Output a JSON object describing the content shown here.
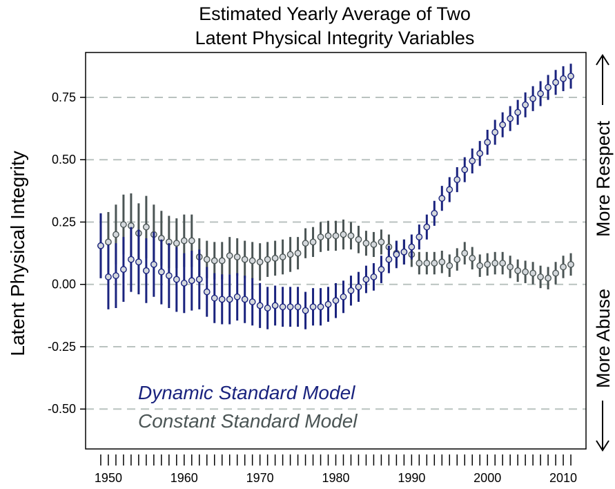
{
  "chart_data": {
    "type": "scatter",
    "title": [
      "Estimated Yearly Average of Two",
      "Latent Physical Integrity Variables"
    ],
    "ylabel": "Latent Physical Integrity",
    "right_labels": {
      "upper": "More Respect",
      "lower": "More Abuse"
    },
    "xlim": [
      1947,
      2013
    ],
    "ylim": [
      -0.66,
      0.93
    ],
    "x_ticks": [
      1950,
      1960,
      1970,
      1980,
      1990,
      2000,
      2010
    ],
    "y_ticks": [
      -0.5,
      -0.25,
      0.0,
      0.25,
      0.5,
      0.75
    ],
    "y_tick_labels": [
      "-0.50",
      "-0.25",
      "0.00",
      "0.25",
      "0.50",
      "0.75"
    ],
    "grid": "dashed horizontal lines at y ticks",
    "legend_placement": "bottom-left",
    "colors": {
      "dynamic": "#1a237e",
      "constant": "#4b5555",
      "grid": "#b9c2bf",
      "point_fill": "#d4d8dc"
    },
    "series": [
      {
        "name": "Dynamic Standard Model",
        "color": "#1a237e",
        "x": [
          1949,
          1950,
          1951,
          1952,
          1953,
          1954,
          1955,
          1956,
          1957,
          1958,
          1959,
          1960,
          1961,
          1962,
          1963,
          1964,
          1965,
          1966,
          1967,
          1968,
          1969,
          1970,
          1971,
          1972,
          1973,
          1974,
          1975,
          1976,
          1977,
          1978,
          1979,
          1980,
          1981,
          1982,
          1983,
          1984,
          1985,
          1986,
          1987,
          1988,
          1989,
          1990,
          1991,
          1992,
          1993,
          1994,
          1995,
          1996,
          1997,
          1998,
          1999,
          2000,
          2001,
          2002,
          2003,
          2004,
          2005,
          2006,
          2007,
          2008,
          2009,
          2010,
          2011
        ],
        "y": [
          0.155,
          0.03,
          0.035,
          0.06,
          0.1,
          0.09,
          0.055,
          0.08,
          0.05,
          0.035,
          0.02,
          0.005,
          0.015,
          0.02,
          -0.03,
          -0.055,
          -0.06,
          -0.06,
          -0.05,
          -0.06,
          -0.07,
          -0.085,
          -0.095,
          -0.085,
          -0.09,
          -0.09,
          -0.09,
          -0.105,
          -0.09,
          -0.09,
          -0.08,
          -0.065,
          -0.05,
          -0.025,
          -0.01,
          0.02,
          0.03,
          0.06,
          0.1,
          0.12,
          0.13,
          0.15,
          0.19,
          0.23,
          0.285,
          0.345,
          0.38,
          0.42,
          0.46,
          0.495,
          0.525,
          0.57,
          0.61,
          0.64,
          0.665,
          0.69,
          0.72,
          0.745,
          0.765,
          0.79,
          0.81,
          0.825,
          0.835
        ],
        "err": [
          0.13,
          0.13,
          0.13,
          0.13,
          0.13,
          0.13,
          0.13,
          0.13,
          0.13,
          0.13,
          0.13,
          0.12,
          0.12,
          0.12,
          0.1,
          0.1,
          0.1,
          0.1,
          0.095,
          0.095,
          0.095,
          0.09,
          0.085,
          0.08,
          0.08,
          0.08,
          0.08,
          0.075,
          0.075,
          0.075,
          0.07,
          0.07,
          0.065,
          0.06,
          0.06,
          0.055,
          0.055,
          0.055,
          0.055,
          0.055,
          0.05,
          0.05,
          0.05,
          0.05,
          0.05,
          0.05,
          0.05,
          0.05,
          0.05,
          0.05,
          0.05,
          0.05,
          0.05,
          0.05,
          0.05,
          0.05,
          0.05,
          0.05,
          0.05,
          0.05,
          0.05,
          0.05,
          0.05
        ]
      },
      {
        "name": "Constant Standard Model",
        "color": "#4b5555",
        "x": [
          1949,
          1950,
          1951,
          1952,
          1953,
          1954,
          1955,
          1956,
          1957,
          1958,
          1959,
          1960,
          1961,
          1962,
          1963,
          1964,
          1965,
          1966,
          1967,
          1968,
          1969,
          1970,
          1971,
          1972,
          1973,
          1974,
          1975,
          1976,
          1977,
          1978,
          1979,
          1980,
          1981,
          1982,
          1983,
          1984,
          1985,
          1986,
          1987,
          1988,
          1989,
          1990,
          1991,
          1992,
          1993,
          1994,
          1995,
          1996,
          1997,
          1998,
          1999,
          2000,
          2001,
          2002,
          2003,
          2004,
          2005,
          2006,
          2007,
          2008,
          2009,
          2010,
          2011
        ],
        "y": [
          0.155,
          0.17,
          0.2,
          0.24,
          0.235,
          0.205,
          0.23,
          0.2,
          0.185,
          0.17,
          0.165,
          0.175,
          0.175,
          0.11,
          0.1,
          0.095,
          0.095,
          0.115,
          0.11,
          0.1,
          0.095,
          0.09,
          0.1,
          0.105,
          0.11,
          0.12,
          0.125,
          0.165,
          0.17,
          0.19,
          0.195,
          0.195,
          0.2,
          0.195,
          0.18,
          0.165,
          0.16,
          0.17,
          0.15,
          0.125,
          0.13,
          0.12,
          0.085,
          0.085,
          0.085,
          0.09,
          0.075,
          0.1,
          0.125,
          0.105,
          0.075,
          0.08,
          0.085,
          0.085,
          0.07,
          0.055,
          0.05,
          0.045,
          0.03,
          0.025,
          0.045,
          0.07,
          0.08
        ],
        "err": [
          0.13,
          0.12,
          0.12,
          0.12,
          0.13,
          0.12,
          0.125,
          0.12,
          0.11,
          0.105,
          0.1,
          0.105,
          0.105,
          0.075,
          0.075,
          0.075,
          0.075,
          0.075,
          0.075,
          0.075,
          0.075,
          0.075,
          0.07,
          0.07,
          0.07,
          0.07,
          0.065,
          0.06,
          0.06,
          0.06,
          0.06,
          0.06,
          0.06,
          0.055,
          0.055,
          0.05,
          0.05,
          0.05,
          0.05,
          0.05,
          0.05,
          0.05,
          0.045,
          0.045,
          0.045,
          0.045,
          0.045,
          0.045,
          0.045,
          0.045,
          0.045,
          0.045,
          0.045,
          0.045,
          0.045,
          0.045,
          0.045,
          0.045,
          0.045,
          0.045,
          0.045,
          0.045,
          0.045
        ]
      }
    ]
  }
}
